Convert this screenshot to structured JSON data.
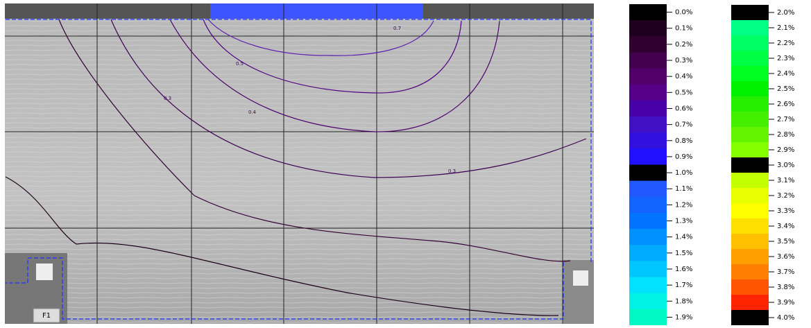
{
  "contour_labels": [
    "0.7",
    "0.5",
    "0.4",
    "0.3",
    "0.3"
  ],
  "legend_left": [
    {
      "label": "0.0%",
      "color": "#000000"
    },
    {
      "label": "0.1%",
      "color": "#1e001e"
    },
    {
      "label": "0.2%",
      "color": "#300030"
    },
    {
      "label": "0.3%",
      "color": "#42004e"
    },
    {
      "label": "0.4%",
      "color": "#500068"
    },
    {
      "label": "0.5%",
      "color": "#56008a"
    },
    {
      "label": "0.6%",
      "color": "#4a00a8"
    },
    {
      "label": "0.7%",
      "color": "#4210c4"
    },
    {
      "label": "0.8%",
      "color": "#3210e0"
    },
    {
      "label": "0.9%",
      "color": "#2010ff"
    },
    {
      "label": "1.0%",
      "color": "#000000"
    },
    {
      "label": "1.1%",
      "color": "#2458ff"
    },
    {
      "label": "1.2%",
      "color": "#1464ff"
    },
    {
      "label": "1.3%",
      "color": "#0074ff"
    },
    {
      "label": "1.4%",
      "color": "#0090ff"
    },
    {
      "label": "1.5%",
      "color": "#00aaff"
    },
    {
      "label": "1.6%",
      "color": "#00c8ff"
    },
    {
      "label": "1.7%",
      "color": "#00e2ff"
    },
    {
      "label": "1.8%",
      "color": "#00f2e4"
    },
    {
      "label": "1.9%",
      "color": "#00f8c4"
    }
  ],
  "legend_right": [
    {
      "label": "2.0%",
      "color": "#000000"
    },
    {
      "label": "2.1%",
      "color": "#00ff84"
    },
    {
      "label": "2.2%",
      "color": "#00ff64"
    },
    {
      "label": "2.3%",
      "color": "#00ff44"
    },
    {
      "label": "2.4%",
      "color": "#00ff20"
    },
    {
      "label": "2.5%",
      "color": "#00f000"
    },
    {
      "label": "2.6%",
      "color": "#24f000"
    },
    {
      "label": "2.7%",
      "color": "#44f000"
    },
    {
      "label": "2.8%",
      "color": "#64f400"
    },
    {
      "label": "2.9%",
      "color": "#84ff00"
    },
    {
      "label": "3.0%",
      "color": "#000000"
    },
    {
      "label": "3.1%",
      "color": "#c4ff00"
    },
    {
      "label": "3.2%",
      "color": "#e8ff00"
    },
    {
      "label": "3.3%",
      "color": "#ffff00"
    },
    {
      "label": "3.4%",
      "color": "#ffe000"
    },
    {
      "label": "3.5%",
      "color": "#ffc000"
    },
    {
      "label": "3.6%",
      "color": "#ffa000"
    },
    {
      "label": "3.7%",
      "color": "#ff8000"
    },
    {
      "label": "3.8%",
      "color": "#ff5400"
    },
    {
      "label": "3.9%",
      "color": "#ff2400"
    },
    {
      "label": "4.0%",
      "color": "#000000"
    }
  ],
  "marker_label": "F1"
}
